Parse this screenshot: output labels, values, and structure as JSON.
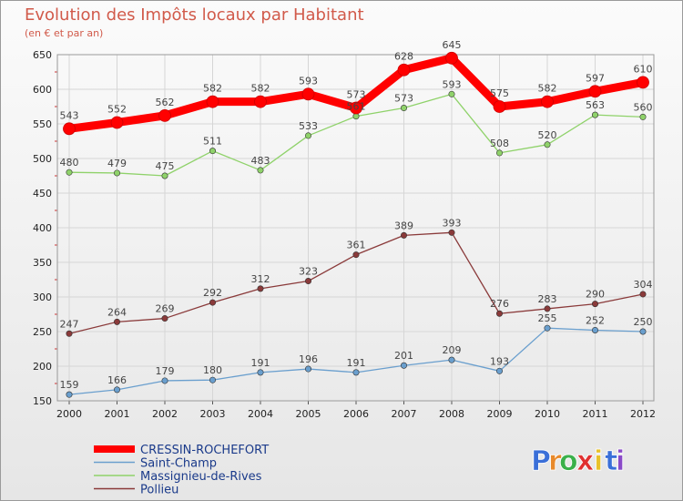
{
  "chart_data": {
    "type": "line",
    "title": "Evolution des Impôts locaux par Habitant",
    "subtitle": "(en € et par an)",
    "x": [
      "2000",
      "2001",
      "2002",
      "2003",
      "2004",
      "2005",
      "2006",
      "2007",
      "2008",
      "2009",
      "2010",
      "2011",
      "2012"
    ],
    "ylim": [
      150,
      650
    ],
    "yticks": [
      150,
      200,
      250,
      300,
      350,
      400,
      450,
      500,
      550,
      600,
      650
    ],
    "grid": true,
    "legend_position": "bottom-left",
    "series": [
      {
        "name": "CRESSIN-ROCHEFORT",
        "color": "#ff0000",
        "values": [
          543,
          552,
          562,
          582,
          582,
          593,
          573,
          628,
          645,
          575,
          582,
          597,
          610
        ]
      },
      {
        "name": "Saint-Champ",
        "color": "#6a9fce",
        "values": [
          159,
          166,
          179,
          180,
          191,
          196,
          191,
          201,
          209,
          193,
          255,
          252,
          250
        ]
      },
      {
        "name": "Massignieu-de-Rives",
        "color": "#8fd26a",
        "values": [
          480,
          479,
          475,
          511,
          483,
          533,
          561,
          573,
          593,
          508,
          520,
          563,
          560
        ]
      },
      {
        "name": "Pollieu",
        "color": "#8a3a3a",
        "values": [
          247,
          264,
          269,
          292,
          312,
          323,
          361,
          389,
          393,
          276,
          283,
          290,
          304
        ]
      }
    ]
  },
  "brand": {
    "letters": [
      "P",
      "r",
      "o",
      "x",
      "i",
      "t",
      "i"
    ],
    "colors": [
      "#3a6fd8",
      "#e8892a",
      "#3ab04a",
      "#e03030",
      "#e8c12a",
      "#3a6fd8",
      "#8a4ac8"
    ]
  }
}
